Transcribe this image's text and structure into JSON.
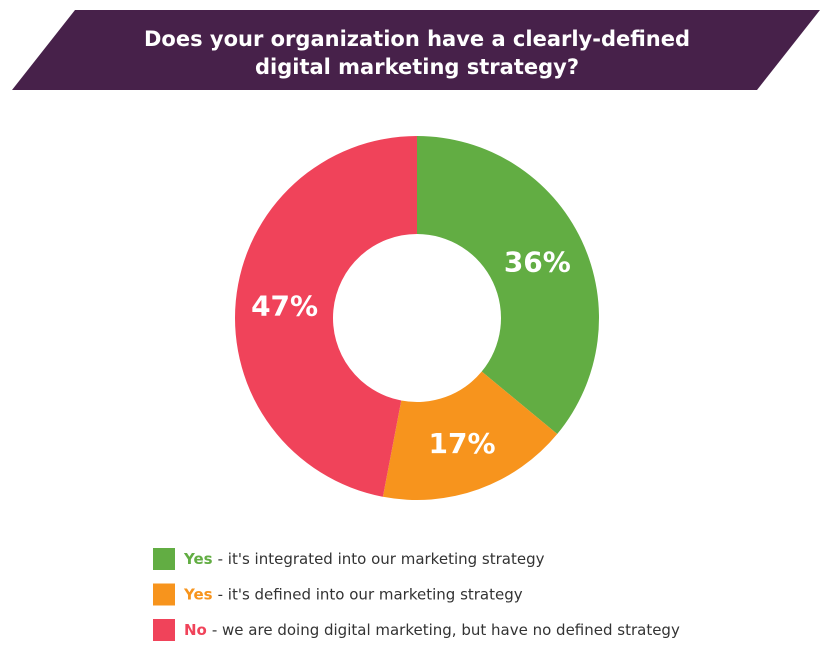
{
  "chart_data": {
    "type": "donut",
    "title": [
      "Does your organization have a clearly-defined",
      "digital marketing strategy?"
    ],
    "categories": [
      {
        "label": "Yes",
        "description": "- it's integrated into our marketing strategy"
      },
      {
        "label": "Yes",
        "description": "- it's defined into our marketing strategy"
      },
      {
        "label": "No",
        "description": "- we are doing digital marketing, but have no defined strategy"
      }
    ],
    "values": [
      36,
      17,
      47
    ],
    "value_labels": [
      "36%",
      "17%",
      "47%"
    ],
    "colors": [
      "#62ad43",
      "#f7941d",
      "#f0435a"
    ]
  }
}
